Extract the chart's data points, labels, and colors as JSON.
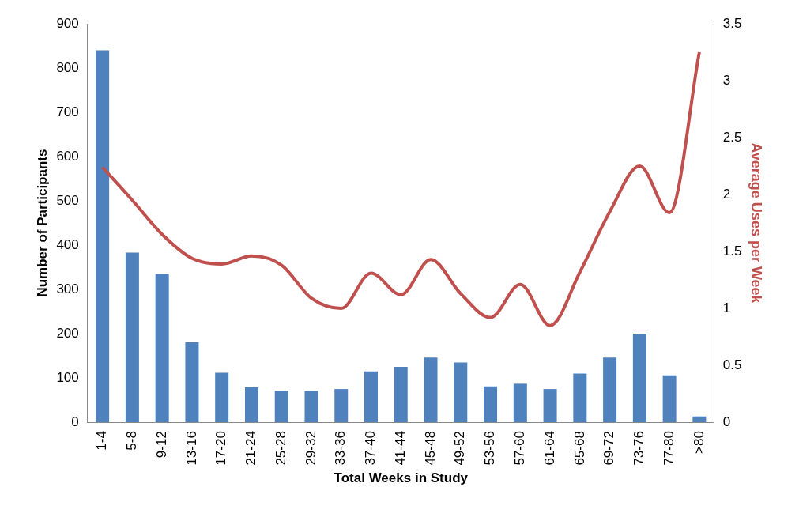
{
  "chart_data": {
    "type": "bar",
    "xlabel": "Total Weeks in Study",
    "ylabel": "Number of Participants",
    "y2label": "Average Uses per Week",
    "categories": [
      "1-4",
      "5-8",
      "9-12",
      "13-16",
      "17-20",
      "21-24",
      "25-28",
      "29-32",
      "33-36",
      "37-40",
      "41-44",
      "45-48",
      "49-52",
      "53-56",
      "57-60",
      "61-64",
      "65-68",
      "69-72",
      "73-76",
      "77-80",
      ">80"
    ],
    "series": [
      {
        "color": "#4f81bd",
        "values": [
          840,
          383,
          335,
          181,
          112,
          79,
          71,
          71,
          75,
          115,
          125,
          146,
          135,
          81,
          87,
          75,
          110,
          146,
          200,
          106,
          13
        ]
      },
      {
        "type": "line",
        "axis": "y2",
        "color": "#c0504d",
        "values": [
          2.24,
          1.95,
          1.65,
          1.44,
          1.39,
          1.46,
          1.38,
          1.09,
          1.0,
          1.31,
          1.12,
          1.43,
          1.13,
          0.92,
          1.21,
          0.85,
          1.32,
          1.85,
          2.25,
          1.84,
          3.25
        ]
      }
    ],
    "ylim": [
      0,
      900
    ],
    "yticks": [
      0,
      100,
      200,
      300,
      400,
      500,
      600,
      700,
      800,
      900
    ],
    "y2lim": [
      0,
      3.5
    ],
    "y2ticks": [
      0,
      0.5,
      1,
      1.5,
      2,
      2.5,
      3,
      3.5
    ],
    "grid": false,
    "legend": false,
    "marker": "none"
  }
}
